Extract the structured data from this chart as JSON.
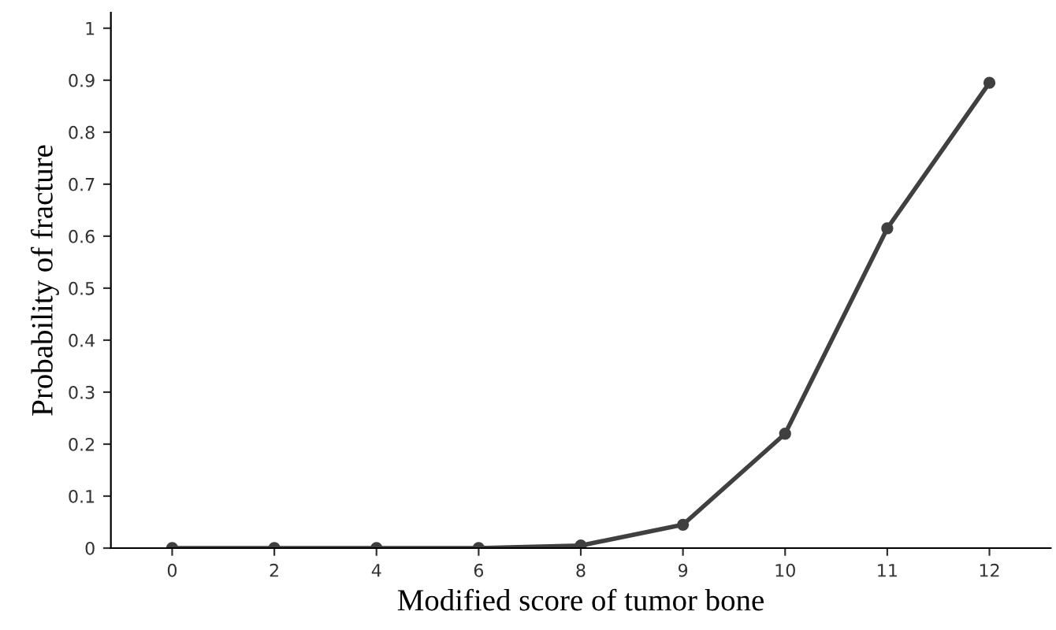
{
  "chart_data": {
    "type": "line",
    "xlabel": "Modified score of tumor bone",
    "ylabel": "Probability of fracture",
    "categories": [
      "0",
      "2",
      "4",
      "6",
      "8",
      "9",
      "10",
      "11",
      "12"
    ],
    "series": [
      {
        "color": "#404040",
        "values": [
          0,
          0,
          0,
          0,
          0.005,
          0.045,
          0.22,
          0.615,
          0.895
        ]
      }
    ],
    "ylim": [
      0,
      1.03
    ],
    "yticks": [
      0,
      0.1,
      0.2,
      0.3,
      0.4,
      0.5,
      0.6,
      0.7,
      0.8,
      0.9,
      1
    ],
    "grid": false,
    "legend": false,
    "marker": "circle",
    "line_style": "solid"
  }
}
